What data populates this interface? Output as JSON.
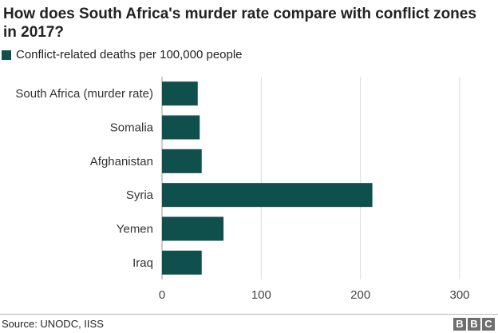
{
  "chart_data": {
    "type": "bar",
    "orientation": "horizontal",
    "title": "How does South Africa's murder rate compare with conflict zones in 2017?",
    "categories": [
      "South Africa (murder rate)",
      "Somalia",
      "Afghanistan",
      "Syria",
      "Yemen",
      "Iraq"
    ],
    "series": [
      {
        "name": "Conflict-related deaths per 100,000 people",
        "values": [
          36,
          38,
          40,
          212,
          62,
          40
        ],
        "color": "#0f4f4c"
      }
    ],
    "xlim": [
      0,
      300
    ],
    "xticks": [
      "0",
      "100",
      "200",
      "300"
    ],
    "xlabel": "",
    "ylabel": "",
    "grid": "vertical",
    "legend_position": "top-left"
  },
  "footer": {
    "source": "Source: UNODC, IISS",
    "logo": [
      "B",
      "B",
      "C"
    ]
  }
}
